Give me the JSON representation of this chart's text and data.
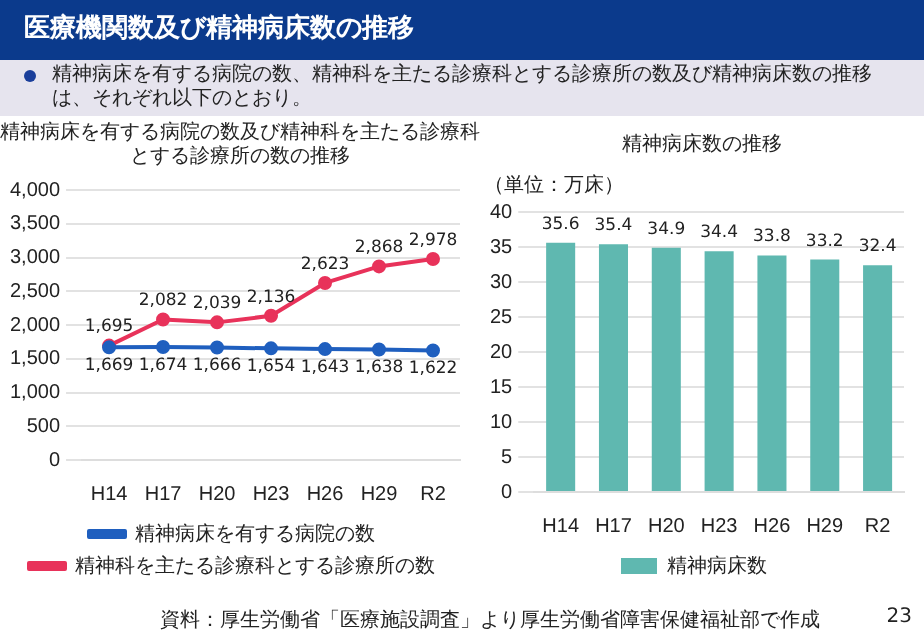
{
  "chart_data": [
    {
      "type": "line",
      "title": "精神病床を有する病院の数及び精神科を主たる診療科とする診療所の数の推移",
      "annotations": [
        "医療機関数及び精神病床数の推移",
        "精神病床を有する病院の数、精神科を主たる診療科とする診療所の数及び精神病床数の推移は、それぞれ以下のとおり。"
      ],
      "categories": [
        "H14",
        "H17",
        "H20",
        "H23",
        "H26",
        "H29",
        "R2"
      ],
      "series": [
        {
          "name": "精神病床を有する病院の数",
          "color": "#1f5fbf",
          "values": [
            1669,
            1674,
            1666,
            1654,
            1643,
            1638,
            1622
          ],
          "value_labels": [
            "1,669",
            "1,674",
            "1,666",
            "1,654",
            "1,643",
            "1,638",
            "1,622"
          ]
        },
        {
          "name": "精神科を主たる診療科とする診療所の数",
          "color": "#e8325a",
          "values": [
            1695,
            2082,
            2039,
            2136,
            2623,
            2868,
            2978
          ],
          "value_labels": [
            "1,695",
            "2,082",
            "2,039",
            "2,136",
            "2,623",
            "2,868",
            "2,978"
          ]
        }
      ],
      "ylim": [
        0,
        4000
      ],
      "yticks": [
        0,
        {
          "value": 500,
          "label": "500"
        },
        {
          "value": 1000,
          "label": "1,000"
        },
        {
          "value": 1500,
          "label": "1,500"
        },
        {
          "value": 2000,
          "label": "2,000"
        },
        {
          "value": 2500,
          "label": "2,500"
        },
        {
          "value": 3000,
          "label": "3,000"
        },
        {
          "value": 3500,
          "label": "3,500"
        },
        {
          "value": 4000,
          "label": "4,000"
        }
      ],
      "grid": "y",
      "legend": "bottom",
      "marker": "circle"
    },
    {
      "type": "bar",
      "title": "精神病床数の推移",
      "ylabel": "（単位：万床）",
      "annotations": [
        "資料：厚生労働省「医療施設調査」より厚生労働省障害保健福祉部で作成",
        "23"
      ],
      "categories": [
        "H14",
        "H17",
        "H20",
        "H23",
        "H26",
        "H29",
        "R2"
      ],
      "series": [
        {
          "name": "精神病床数",
          "color": "#5fb8b0",
          "values": [
            35.6,
            35.4,
            34.9,
            34.4,
            33.8,
            33.2,
            32.4
          ]
        }
      ],
      "ylim": [
        0,
        40
      ],
      "yticks": [
        0,
        5,
        10,
        15,
        20,
        25,
        30,
        35,
        40
      ],
      "grid": "y",
      "legend": "bottom",
      "data_labels": true
    }
  ]
}
